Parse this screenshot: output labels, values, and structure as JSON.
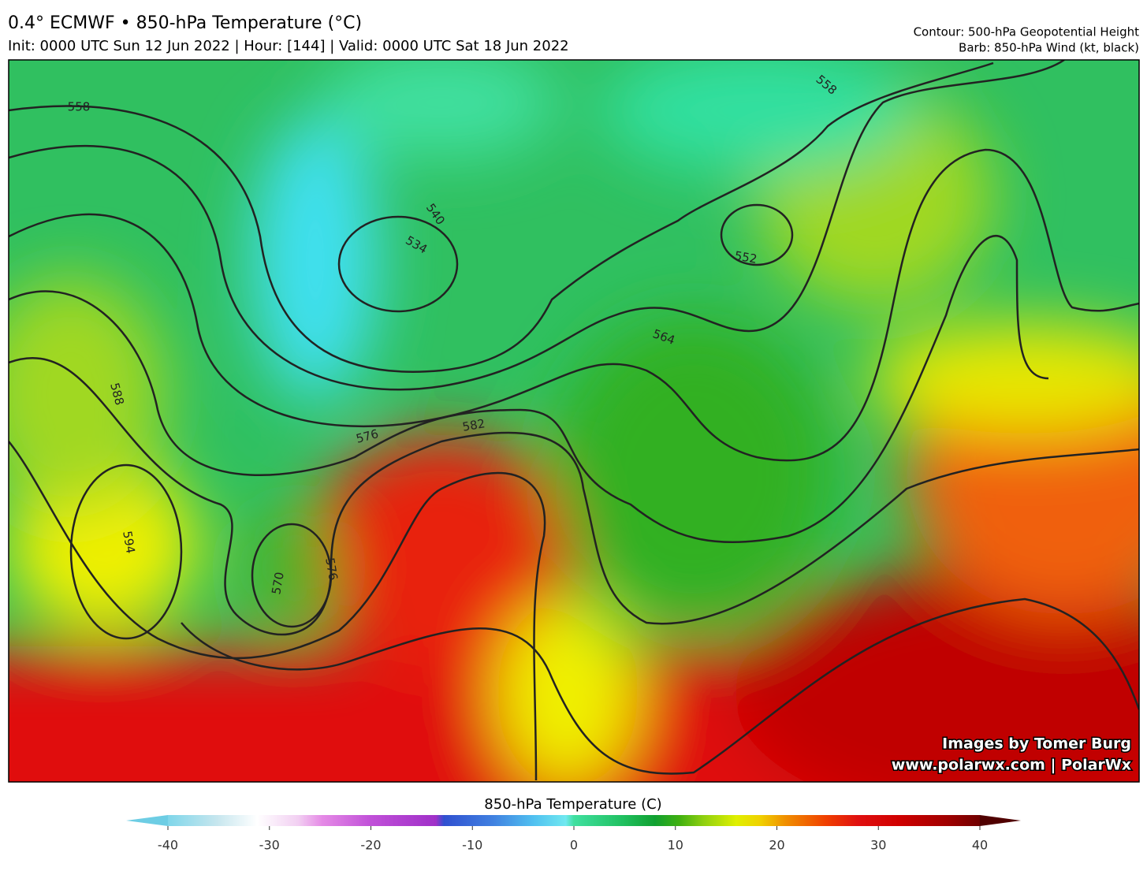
{
  "header": {
    "title": "0.4° ECMWF • 850-hPa Temperature (°C)",
    "subtitle": "Init: 0000 UTC Sun 12 Jun 2022 | Hour: [144] | Valid: 0000 UTC Sat 18 Jun 2022",
    "contour_note": "Contour: 500-hPa Geopotential Height",
    "barb_note": "Barb: 850-hPa Wind (kt, black)"
  },
  "map": {
    "contour_labels": [
      558,
      540,
      534,
      552,
      564,
      576,
      582,
      588,
      594,
      570,
      576,
      558
    ]
  },
  "colorbar": {
    "title": "850-hPa Temperature (C)",
    "range": [
      -40,
      40
    ],
    "ticks": [
      -40,
      -30,
      -20,
      -10,
      0,
      10,
      20,
      30,
      40
    ]
  },
  "watermark": {
    "line1": "Images by Tomer Burg",
    "line2": "www.polarwx.com | PolarWx"
  }
}
